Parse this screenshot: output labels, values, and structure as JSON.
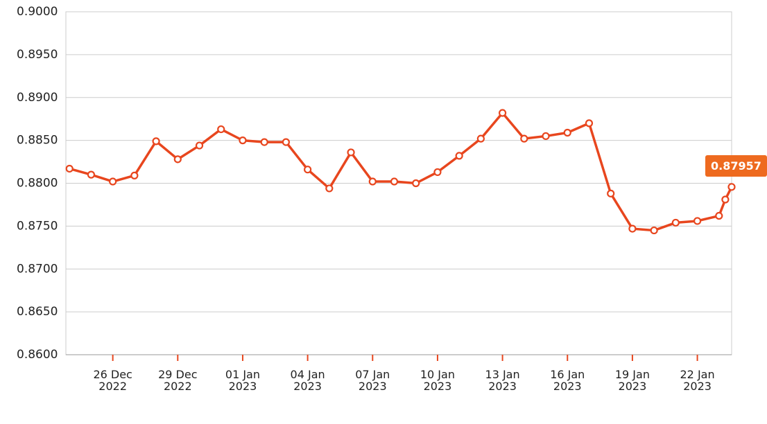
{
  "chart_data": {
    "type": "line",
    "x": [
      "2022-12-24",
      "2022-12-25",
      "2022-12-26",
      "2022-12-27",
      "2022-12-28",
      "2022-12-29",
      "2022-12-30",
      "2022-12-31",
      "2023-01-01",
      "2023-01-02",
      "2023-01-03",
      "2023-01-04",
      "2023-01-05",
      "2023-01-06",
      "2023-01-07",
      "2023-01-08",
      "2023-01-09",
      "2023-01-10",
      "2023-01-11",
      "2023-01-12",
      "2023-01-13",
      "2023-01-14",
      "2023-01-15",
      "2023-01-16",
      "2023-01-17",
      "2023-01-18",
      "2023-01-19",
      "2023-01-20",
      "2023-01-21",
      "2023-01-22",
      "2023-01-23",
      "2023-01-23T07:00",
      "2023-01-23T14:00"
    ],
    "series": [
      {
        "color": "#e8461e",
        "values": [
          0.8817,
          0.881,
          0.8802,
          0.8809,
          0.8849,
          0.8828,
          0.8844,
          0.8863,
          0.885,
          0.8848,
          0.8848,
          0.8816,
          0.8794,
          0.8836,
          0.8802,
          0.8802,
          0.88,
          0.8813,
          0.8832,
          0.8852,
          0.8882,
          0.8852,
          0.8855,
          0.8859,
          0.887,
          0.8788,
          0.8747,
          0.8745,
          0.8754,
          0.8756,
          0.8762,
          0.8781,
          0.87957
        ],
        "last_value_label": "0.87957"
      }
    ],
    "xlim": [
      "2022-12-23T20:00",
      "2023-01-23T14:00"
    ],
    "xticks": [
      {
        "value": "2022-12-26",
        "label": "26 Dec\n2022"
      },
      {
        "value": "2022-12-29",
        "label": "29 Dec\n2022"
      },
      {
        "value": "2023-01-01",
        "label": "01 Jan\n2023"
      },
      {
        "value": "2023-01-04",
        "label": "04 Jan\n2023"
      },
      {
        "value": "2023-01-07",
        "label": "07 Jan\n2023"
      },
      {
        "value": "2023-01-10",
        "label": "10 Jan\n2023"
      },
      {
        "value": "2023-01-13",
        "label": "13 Jan\n2023"
      },
      {
        "value": "2023-01-16",
        "label": "16 Jan\n2023"
      },
      {
        "value": "2023-01-19",
        "label": "19 Jan\n2023"
      },
      {
        "value": "2023-01-22",
        "label": "22 Jan\n2023"
      }
    ],
    "ylim": [
      0.86,
      0.9
    ],
    "yticks": [
      {
        "value": 0.86,
        "label": "0.8600"
      },
      {
        "value": 0.865,
        "label": "0.8650"
      },
      {
        "value": 0.87,
        "label": "0.8700"
      },
      {
        "value": 0.875,
        "label": "0.8750"
      },
      {
        "value": 0.88,
        "label": "0.8800"
      },
      {
        "value": 0.885,
        "label": "0.8850"
      },
      {
        "value": 0.89,
        "label": "0.8900"
      },
      {
        "value": 0.895,
        "label": "0.8950"
      },
      {
        "value": 0.9,
        "label": "0.9000"
      }
    ],
    "grid": true
  }
}
